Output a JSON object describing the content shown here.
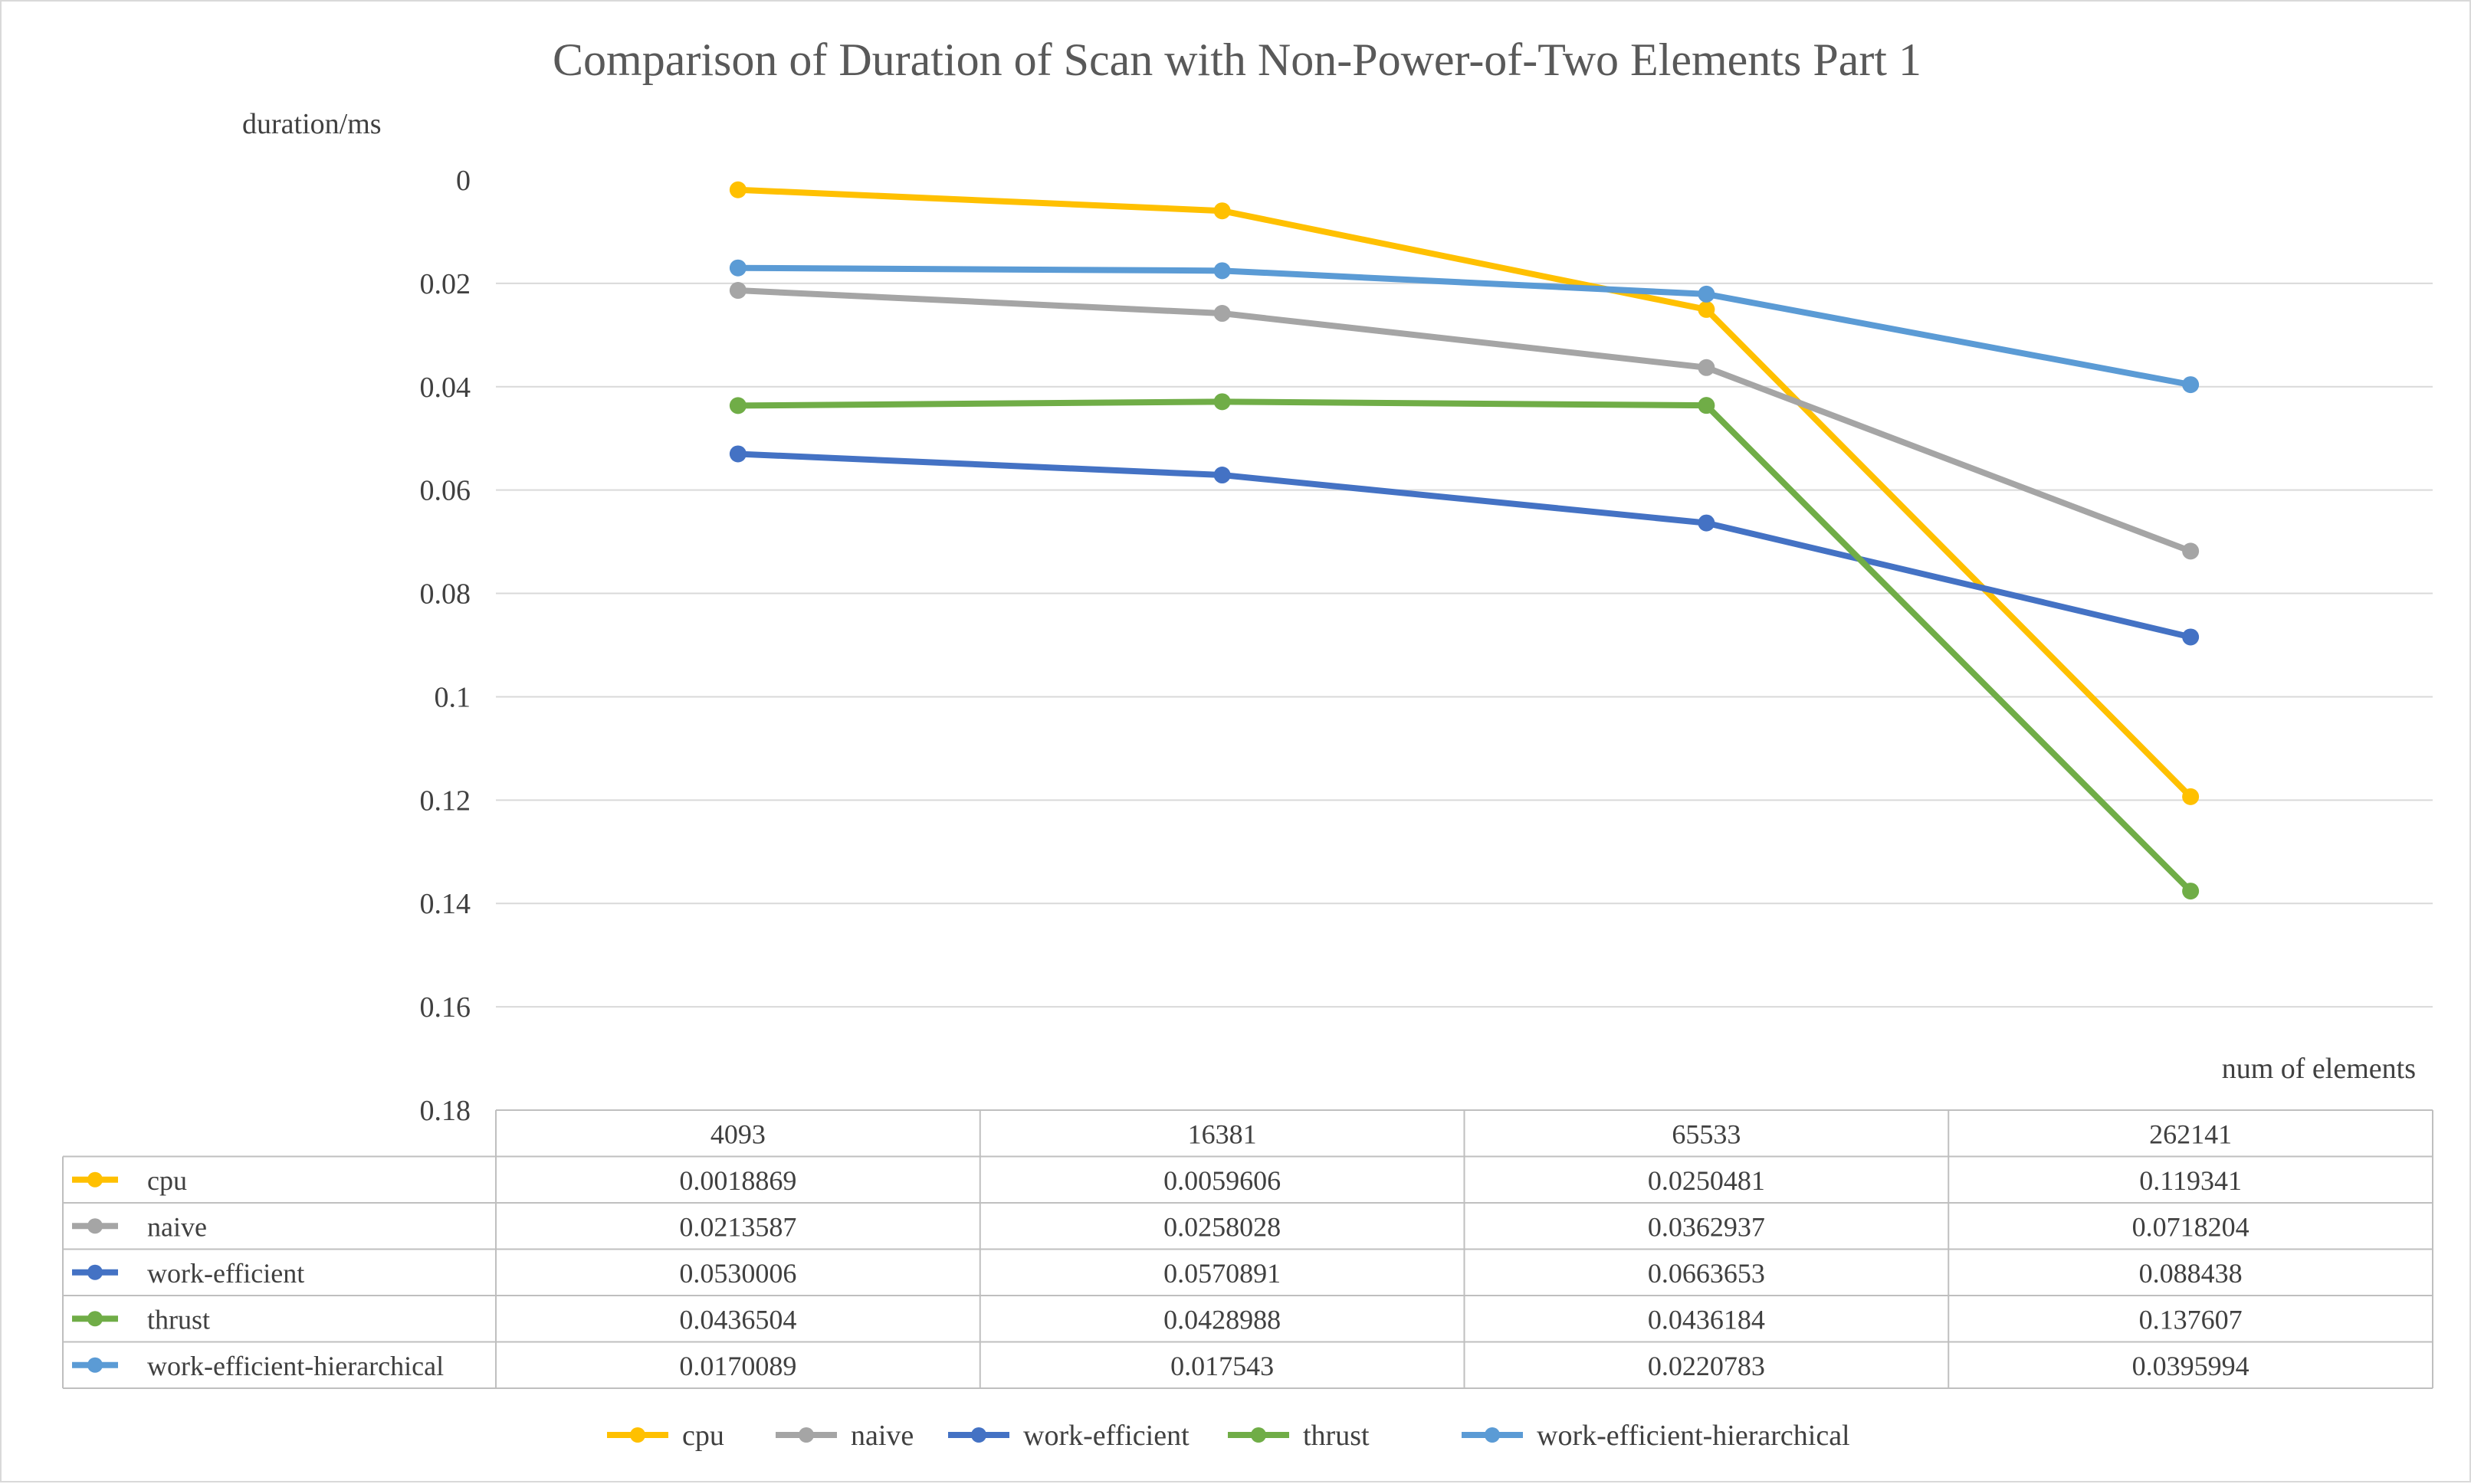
{
  "chart_data": {
    "type": "line",
    "title": "Comparison of Duration of Scan with Non-Power-of-Two Elements Part 1",
    "ylabel": "duration/ms",
    "xlabel": "num of elements",
    "y_reversed": true,
    "ylim": [
      0,
      0.18
    ],
    "y_ticks": [
      "0",
      "0.02",
      "0.04",
      "0.06",
      "0.08",
      "0.1",
      "0.12",
      "0.14",
      "0.16",
      "0.18"
    ],
    "y_tick_values": [
      0,
      0.02,
      0.04,
      0.06,
      0.08,
      0.1,
      0.12,
      0.14,
      0.16,
      0.18
    ],
    "grid": true,
    "legend_position": "bottom",
    "categories": [
      "4093",
      "16381",
      "65533",
      "262141"
    ],
    "series": [
      {
        "name": "cpu",
        "color": "#FFC000",
        "values": [
          0.0018869,
          0.0059606,
          0.0250481,
          0.119341
        ],
        "labels": [
          "0.0018869",
          "0.0059606",
          "0.0250481",
          "0.119341"
        ]
      },
      {
        "name": "naive",
        "color": "#A5A5A5",
        "values": [
          0.0213587,
          0.0258028,
          0.0362937,
          0.0718204
        ],
        "labels": [
          "0.0213587",
          "0.0258028",
          "0.0362937",
          "0.0718204"
        ]
      },
      {
        "name": "work-efficient",
        "color": "#4472C4",
        "values": [
          0.0530006,
          0.0570891,
          0.0663653,
          0.088438
        ],
        "labels": [
          "0.0530006",
          "0.0570891",
          "0.0663653",
          "0.088438"
        ]
      },
      {
        "name": "thrust",
        "color": "#70AD47",
        "values": [
          0.0436504,
          0.0428988,
          0.0436184,
          0.137607
        ],
        "labels": [
          "0.0436504",
          "0.0428988",
          "0.0436184",
          "0.137607"
        ]
      },
      {
        "name": "work-efficient-hierarchical",
        "color": "#5B9BD5",
        "values": [
          0.0170089,
          0.017543,
          0.0220783,
          0.0395994
        ],
        "labels": [
          "0.0170089",
          "0.017543",
          "0.0220783",
          "0.0395994"
        ]
      }
    ]
  }
}
